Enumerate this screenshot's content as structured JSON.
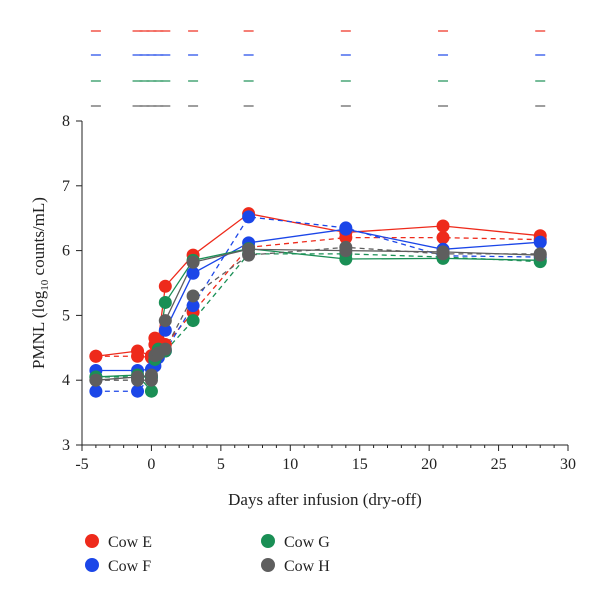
{
  "chart_data": {
    "type": "line",
    "xlabel": "Days after infusion (dry-off)",
    "ylabel_prefix": "PMNL (log",
    "ylabel_sub": "10",
    "ylabel_suffix": " counts/mL)",
    "xlim": [
      -5,
      30
    ],
    "ylim": [
      3,
      8
    ],
    "xticks": [
      "-5",
      "0",
      "5",
      "10",
      "15",
      "20",
      "25",
      "30"
    ],
    "yticks": [
      "3",
      "4",
      "5",
      "6",
      "7",
      "8"
    ],
    "x": [
      -4,
      -1,
      0,
      0.25,
      0.5,
      1,
      3,
      7,
      14,
      21,
      28
    ],
    "series": [
      {
        "name": "Cow E",
        "color": "#ee2a1b",
        "solid": [
          4.37,
          4.45,
          4.38,
          4.65,
          4.62,
          5.45,
          5.93,
          6.57,
          6.28,
          6.38,
          6.23
        ],
        "dashed": [
          4.37,
          4.37,
          4.35,
          4.55,
          4.55,
          4.55,
          5.05,
          6.05,
          6.2,
          6.2,
          6.17
        ]
      },
      {
        "name": "Cow F",
        "color": "#1b46e8",
        "solid": [
          4.15,
          4.15,
          4.17,
          4.3,
          4.45,
          4.77,
          5.65,
          6.12,
          6.33,
          6.02,
          6.13
        ],
        "dashed": [
          3.83,
          3.83,
          4.05,
          4.22,
          4.35,
          4.45,
          5.15,
          6.52,
          6.35,
          5.92,
          5.9
        ]
      },
      {
        "name": "Cow G",
        "color": "#1a8f55",
        "solid": [
          4.05,
          4.08,
          3.83,
          4.32,
          4.48,
          5.2,
          5.85,
          6.03,
          5.87,
          5.88,
          5.85
        ],
        "dashed": [
          4.05,
          4.05,
          4.05,
          4.38,
          4.45,
          4.45,
          4.92,
          5.95,
          5.95,
          5.9,
          5.83
        ]
      },
      {
        "name": "Cow H",
        "color": "#5e5e5e",
        "solid": [
          4.0,
          4.05,
          4.08,
          4.38,
          4.42,
          4.92,
          5.82,
          6.02,
          6.0,
          5.98,
          5.93
        ],
        "dashed": [
          4.0,
          4.0,
          4.0,
          4.38,
          4.4,
          4.48,
          5.3,
          5.93,
          6.05,
          5.95,
          5.95
        ]
      }
    ],
    "sample_markers_x": [
      -4,
      -1,
      -0.5,
      0,
      0.5,
      1,
      3,
      7,
      14,
      21,
      28
    ],
    "legend_placement": "bottom-left",
    "grid": false
  }
}
